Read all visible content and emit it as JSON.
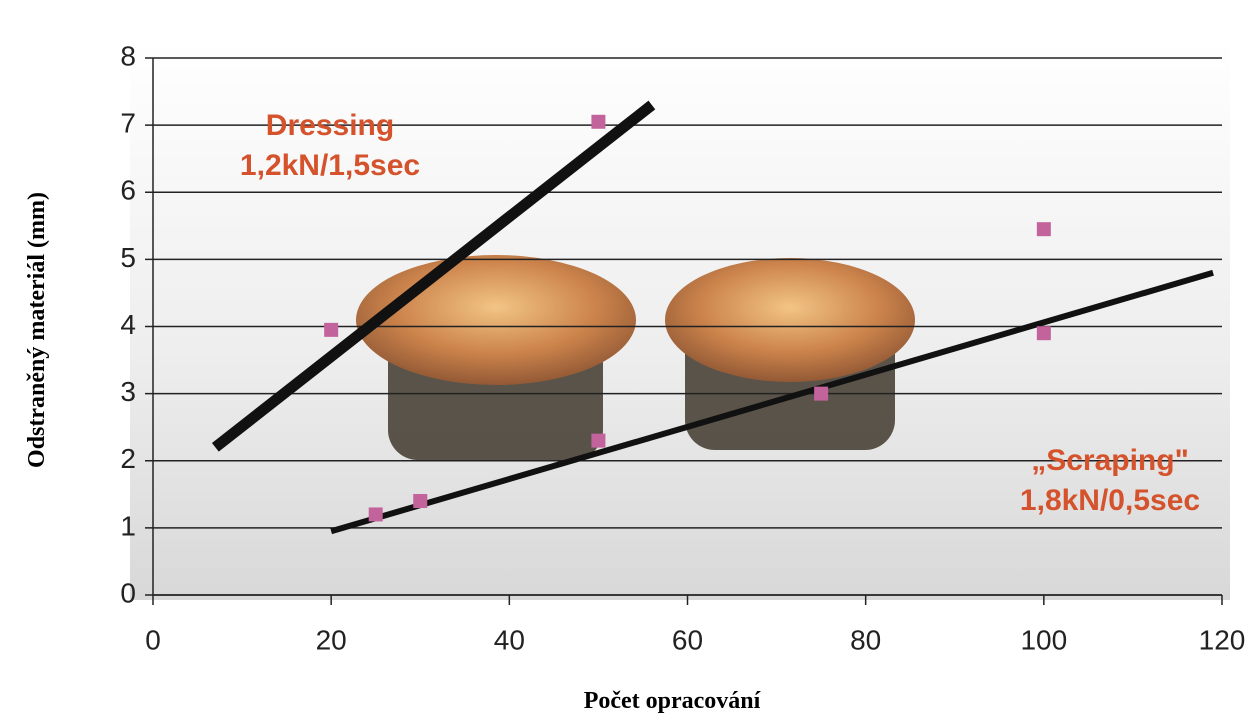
{
  "chart_data": {
    "type": "scatter",
    "x": [
      20,
      25,
      30,
      50,
      50,
      75,
      100,
      100
    ],
    "values": [
      3.95,
      1.2,
      1.4,
      7.05,
      2.3,
      3.0,
      5.45,
      3.9
    ],
    "color": "#c2639c",
    "xlim": [
      0,
      120
    ],
    "xticks": [
      0,
      20,
      40,
      60,
      80,
      100,
      120
    ],
    "ylim": [
      0,
      8
    ],
    "yticks": [
      0,
      1,
      2,
      3,
      4,
      5,
      6,
      7,
      8
    ],
    "grid": true,
    "xlabel": "Počet opracování",
    "ylabel": "Odstraněný materiál (mm)",
    "trend_lines": [
      {
        "x": [
          7,
          56
        ],
        "values": [
          2.2,
          7.3
        ],
        "color": "#111111"
      },
      {
        "x": [
          20,
          119
        ],
        "values": [
          0.95,
          4.8
        ],
        "color": "#111111"
      }
    ],
    "annotation_color": "#d4532c",
    "annotations": [
      {
        "lines": [
          "Dressing",
          "1,2kN/1,5sec"
        ]
      },
      {
        "lines": [
          "„Scraping\"",
          "1,8kN/0,5sec"
        ]
      }
    ]
  }
}
